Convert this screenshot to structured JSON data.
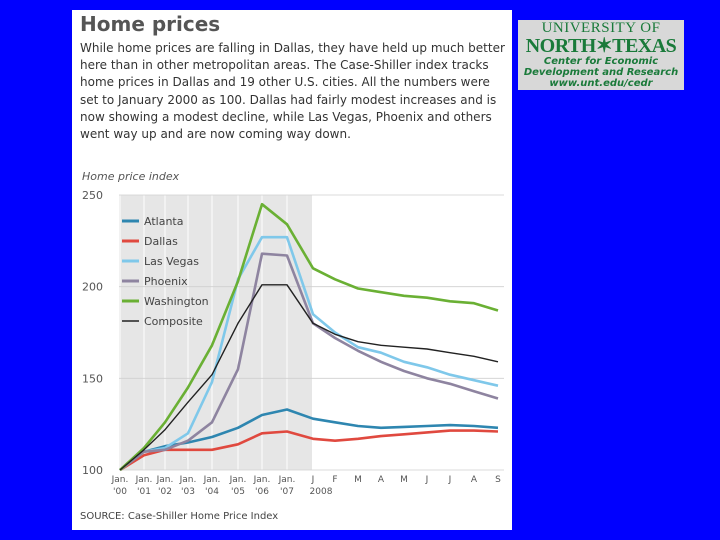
{
  "title": "Home prices",
  "description": "While home prices are falling in Dallas, they have held up much better here than in other metropolitan areas. The Case-Shiller index tracks home prices in Dallas and 19 other U.S. cities. All the numbers were set to January 2000 as 100. Dallas had fairly modest increases and is now showing a modest decline, while Las Vegas, Phoenix and others went way up and are now coming way down.",
  "source": "SOURCE: Case-Shiller Home Price Index",
  "logo": {
    "line1": "UNIVERSITY OF",
    "line2": "NORTH✶TEXAS",
    "line3": "Center for Economic",
    "line4": "Development and Research",
    "line5": "www.unt.edu/cedr"
  },
  "colors": {
    "Atlanta": "#2e86b0",
    "Dallas": "#e0493f",
    "Las Vegas": "#7fc8ea",
    "Phoenix": "#8e84a0",
    "Washington": "#6ab034",
    "Composite": "#222222"
  },
  "chart_data": {
    "type": "line",
    "ylabel": "Home price index",
    "ylim": [
      100,
      250
    ],
    "yticks": [
      100,
      150,
      200,
      250
    ],
    "grid": true,
    "legend_position": "top-left",
    "categories": [
      "Jan. '00",
      "Jan. '01",
      "Jan. '02",
      "Jan. '03",
      "Jan. '04",
      "Jan. '05",
      "Jan. '06",
      "Jan. '07",
      "J",
      "F",
      "M",
      "A",
      "M",
      "J",
      "J",
      "A",
      "S"
    ],
    "x_group_label": "2008",
    "series": [
      {
        "name": "Atlanta",
        "values": [
          100,
          110,
          113,
          115,
          118,
          123,
          130,
          133,
          128,
          126,
          124,
          123,
          123.5,
          124,
          124.5,
          124,
          123
        ]
      },
      {
        "name": "Dallas",
        "values": [
          100,
          108,
          111,
          111,
          111,
          114,
          120,
          121,
          117,
          116,
          117,
          118.5,
          119.5,
          120.5,
          121.5,
          121.5,
          121
        ]
      },
      {
        "name": "Las Vegas",
        "values": [
          100,
          110,
          112,
          120,
          148,
          204,
          227,
          227,
          185,
          175,
          167,
          164,
          159,
          156,
          152,
          149,
          146
        ]
      },
      {
        "name": "Phoenix",
        "values": [
          100,
          110,
          111,
          116,
          126,
          155,
          218,
          217,
          180,
          172,
          165,
          159,
          154,
          150,
          147,
          143,
          139
        ]
      },
      {
        "name": "Washington",
        "values": [
          100,
          112,
          126,
          145,
          168,
          203,
          245,
          234,
          210,
          204,
          199,
          197,
          195,
          194,
          192,
          191,
          187
        ]
      },
      {
        "name": "Composite",
        "values": [
          100,
          111,
          122,
          137,
          152,
          180,
          201,
          201,
          180,
          174,
          170,
          168,
          167,
          166,
          164,
          162,
          159
        ]
      }
    ]
  }
}
